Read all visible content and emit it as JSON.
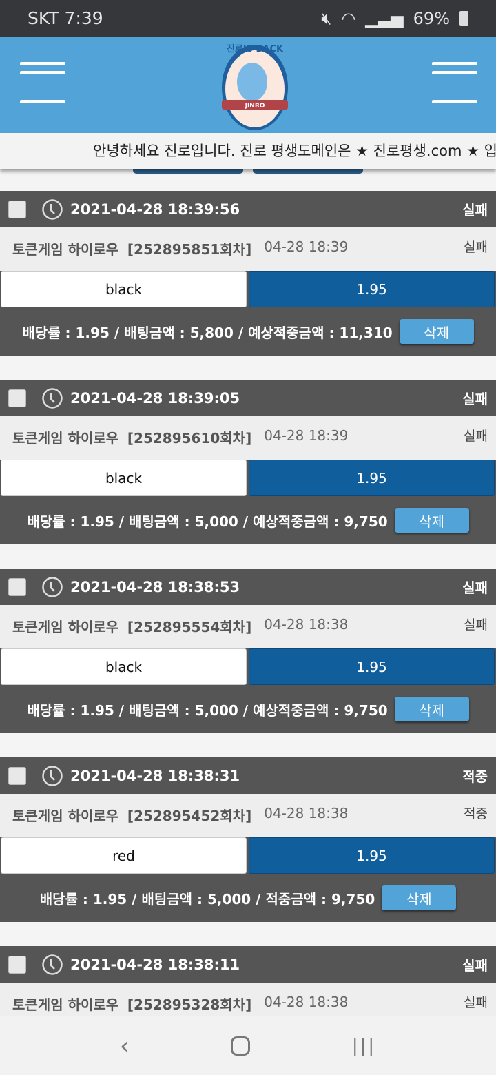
{
  "status_bar": {
    "carrier_time": "SKT 7:39",
    "battery": "69%"
  },
  "header": {
    "logo_text": "진로 IS BACK JINRO"
  },
  "ticker": {
    "text": "안녕하세요 진로입니다. 진로 평생도메인은 ★ 진로평생.com ★ 입"
  },
  "cards": [
    {
      "datetime": "2021-04-28 18:39:56",
      "result": "실패",
      "game": "토큰게임 하이로우",
      "round": "[252895851회차]",
      "time": "04-28 18:39",
      "sub_result": "실패",
      "pick": "black",
      "odds": "1.95",
      "summary": "배당률 : 1.95 / 배팅금액 : 5,800 / 예상적중금액 : 11,310",
      "delete": "삭제"
    },
    {
      "datetime": "2021-04-28 18:39:05",
      "result": "실패",
      "game": "토큰게임 하이로우",
      "round": "[252895610회차]",
      "time": "04-28 18:39",
      "sub_result": "실패",
      "pick": "black",
      "odds": "1.95",
      "summary": "배당률 : 1.95 / 배팅금액 : 5,000 / 예상적중금액 : 9,750",
      "delete": "삭제"
    },
    {
      "datetime": "2021-04-28 18:38:53",
      "result": "실패",
      "game": "토큰게임 하이로우",
      "round": "[252895554회차]",
      "time": "04-28 18:38",
      "sub_result": "실패",
      "pick": "black",
      "odds": "1.95",
      "summary": "배당률 : 1.95 / 배팅금액 : 5,000 / 예상적중금액 : 9,750",
      "delete": "삭제"
    },
    {
      "datetime": "2021-04-28 18:38:31",
      "result": "적중",
      "game": "토큰게임 하이로우",
      "round": "[252895452회차]",
      "time": "04-28 18:38",
      "sub_result": "적중",
      "pick": "red",
      "odds": "1.95",
      "summary": "배당률 : 1.95 / 배팅금액 : 5,000 / 적중금액 : 9,750",
      "delete": "삭제"
    },
    {
      "datetime": "2021-04-28 18:38:11",
      "result": "실패",
      "game": "토큰게임 하이로우",
      "round": "[252895328회차]",
      "time": "04-28 18:38",
      "sub_result": "실패",
      "pick": "",
      "odds": "",
      "summary": "",
      "delete": ""
    }
  ],
  "colors": {
    "header_blue": "#52a4d8",
    "odds_blue": "#115e9d",
    "card_dark": "#555555"
  }
}
